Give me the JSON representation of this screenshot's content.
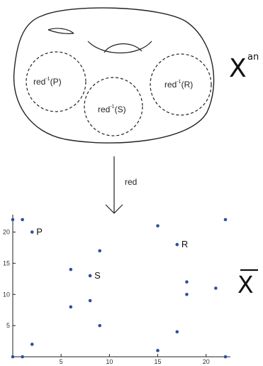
{
  "top_space": {
    "label_main": "X",
    "label_sup": "an",
    "discs": [
      {
        "prefix": "red",
        "exp": "-1",
        "arg": "(P)"
      },
      {
        "prefix": "red",
        "exp": "-1",
        "arg": "(S)"
      },
      {
        "prefix": "red",
        "exp": "-1",
        "arg": "(R)"
      }
    ]
  },
  "arrow": {
    "label": "red"
  },
  "bottom_space": {
    "label": "X"
  },
  "chart_data": {
    "type": "scatter",
    "xlim": [
      0,
      22
    ],
    "ylim": [
      0,
      22
    ],
    "xticks": [
      "5",
      "10",
      "15",
      "20"
    ],
    "yticks": [
      "5",
      "10",
      "15",
      "20"
    ],
    "point_color": "#2f4f9f",
    "points": [
      {
        "x": 0,
        "y": 22
      },
      {
        "x": 1,
        "y": 22
      },
      {
        "x": 2,
        "y": 20,
        "label": "P"
      },
      {
        "x": 22,
        "y": 22
      },
      {
        "x": 15,
        "y": 21
      },
      {
        "x": 17,
        "y": 18,
        "label": "R"
      },
      {
        "x": 9,
        "y": 17
      },
      {
        "x": 6,
        "y": 14
      },
      {
        "x": 8,
        "y": 13,
        "label": "S"
      },
      {
        "x": 18,
        "y": 12
      },
      {
        "x": 21,
        "y": 11
      },
      {
        "x": 18,
        "y": 10
      },
      {
        "x": 8,
        "y": 9
      },
      {
        "x": 6,
        "y": 8
      },
      {
        "x": 9,
        "y": 5
      },
      {
        "x": 17,
        "y": 4
      },
      {
        "x": 2,
        "y": 2
      },
      {
        "x": 15,
        "y": 1
      },
      {
        "x": 0,
        "y": 0
      },
      {
        "x": 1,
        "y": 0
      },
      {
        "x": 22,
        "y": 0
      }
    ]
  }
}
